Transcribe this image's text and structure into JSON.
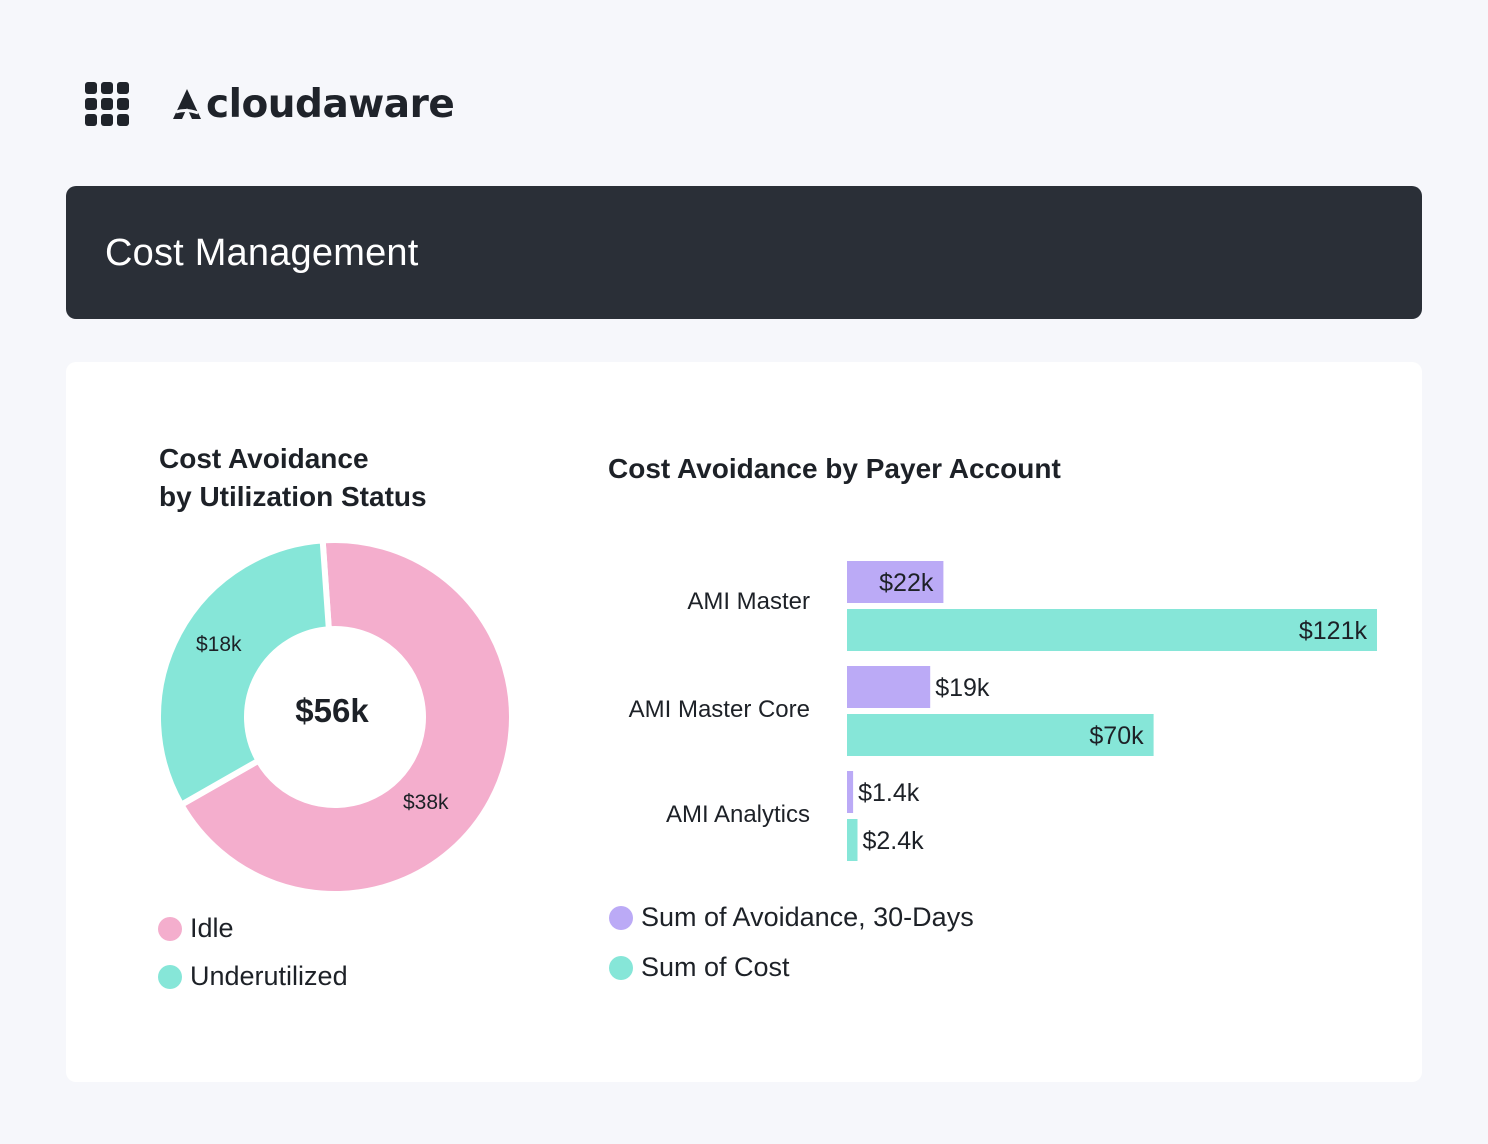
{
  "header": {
    "apps_icon": "grid-icon",
    "logo_text": "cloudaware",
    "logo_icon": "cloudaware-logo-icon"
  },
  "banner": {
    "title": "Cost Management"
  },
  "colors": {
    "banner_bg": "#2a2f37",
    "idle": "#f4aecd",
    "underutilized": "#86e6d8",
    "avoidance": "#bbaaf6",
    "cost": "#86e6d8"
  },
  "donut": {
    "title_line1": "Cost Avoidance",
    "title_line2": "by Utilization Status",
    "total": "$56k",
    "legend": [
      {
        "label": "Idle",
        "color": "#f4aecd"
      },
      {
        "label": "Underutilized",
        "color": "#86e6d8"
      }
    ]
  },
  "bar": {
    "title": "Cost Avoidance by Payer Account",
    "legend": [
      {
        "label": "Sum of Avoidance, 30-Days",
        "color": "#bbaaf6"
      },
      {
        "label": "Sum of Cost",
        "color": "#86e6d8"
      }
    ]
  },
  "chart_data": [
    {
      "type": "pie",
      "title": "Cost Avoidance by Utilization Status",
      "center_label": "$56k",
      "categories": [
        "Idle",
        "Underutilized"
      ],
      "values": [
        38,
        18
      ],
      "value_labels": [
        "$38k",
        "$18k"
      ],
      "units": "$k",
      "legend": "bottom-left"
    },
    {
      "type": "bar",
      "orientation": "horizontal",
      "title": "Cost Avoidance by Payer Account",
      "categories": [
        "AMI Master",
        "AMI Master Core",
        "AMI Analytics"
      ],
      "series": [
        {
          "name": "Sum of Avoidance, 30-Days",
          "values": [
            22,
            19,
            1.4
          ],
          "value_labels": [
            "$22k",
            "$19k",
            "$1.4k"
          ]
        },
        {
          "name": "Sum of Cost",
          "values": [
            121,
            70,
            2.4
          ],
          "value_labels": [
            "$121k",
            "$70k",
            "$2.4k"
          ]
        }
      ],
      "units": "$k",
      "grid": false,
      "legend": "bottom"
    }
  ]
}
